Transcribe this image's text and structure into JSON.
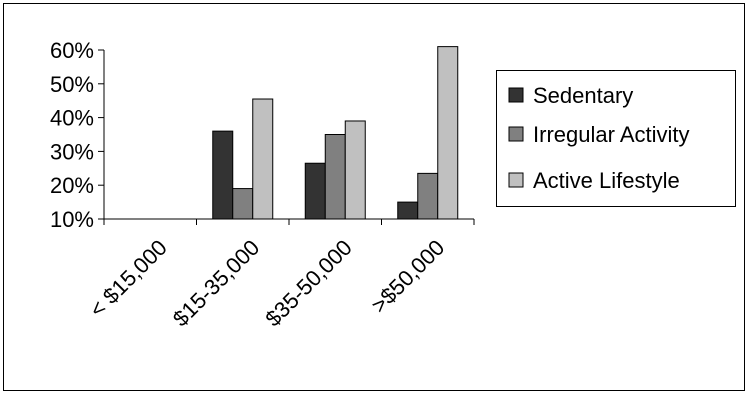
{
  "chart_data": {
    "type": "bar",
    "title": "",
    "xlabel": "",
    "ylabel": "",
    "categories": [
      "< $15,000",
      "$15-35,000",
      "$35-50,000",
      ">$50,000"
    ],
    "y_ticks": [
      "10%",
      "20%",
      "30%",
      "40%",
      "50%",
      "60%"
    ],
    "ylim": [
      10,
      60
    ],
    "grid": false,
    "legend_position": "right",
    "series": [
      {
        "name": "Sedentary",
        "color": "#333333",
        "values": [
          null,
          36,
          26.5,
          15
        ]
      },
      {
        "name": "Irregular Activity",
        "color": "#808080",
        "values": [
          null,
          19,
          35,
          23.5
        ]
      },
      {
        "name": "Active Lifestyle",
        "color": "#c0c0c0",
        "values": [
          null,
          45.5,
          39,
          61
        ]
      }
    ]
  }
}
